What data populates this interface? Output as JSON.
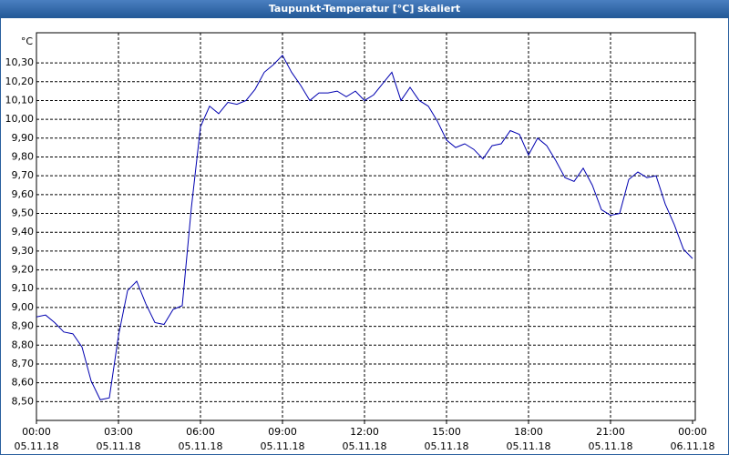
{
  "chart_data": {
    "type": "line",
    "title": "Taupunkt-Temperatur [°C] skaliert",
    "y_unit": "°C",
    "xlim": [
      0,
      1440
    ],
    "xticks": [
      {
        "value": 0,
        "label": "00:00"
      },
      {
        "value": 180,
        "label": "03:00"
      },
      {
        "value": 360,
        "label": "06:00"
      },
      {
        "value": 540,
        "label": "09:00"
      },
      {
        "value": 720,
        "label": "12:00"
      },
      {
        "value": 900,
        "label": "15:00"
      },
      {
        "value": 1080,
        "label": "18:00"
      },
      {
        "value": 1260,
        "label": "21:00"
      },
      {
        "value": 1440,
        "label": "00:00"
      }
    ],
    "xtick_dates": [
      "05.11.18",
      "05.11.18",
      "05.11.18",
      "05.11.18",
      "05.11.18",
      "05.11.18",
      "05.11.18",
      "05.11.18",
      "06.11.18"
    ],
    "ylim": [
      8.4,
      10.46
    ],
    "yticks": [
      {
        "value": 8.5,
        "label": "8,50"
      },
      {
        "value": 8.6,
        "label": "8,60"
      },
      {
        "value": 8.7,
        "label": "8,70"
      },
      {
        "value": 8.8,
        "label": "8,80"
      },
      {
        "value": 8.9,
        "label": "8,90"
      },
      {
        "value": 9.0,
        "label": "9,00"
      },
      {
        "value": 9.1,
        "label": "9,10"
      },
      {
        "value": 9.2,
        "label": "9,20"
      },
      {
        "value": 9.3,
        "label": "9,30"
      },
      {
        "value": 9.4,
        "label": "9,40"
      },
      {
        "value": 9.5,
        "label": "9,50"
      },
      {
        "value": 9.6,
        "label": "9,60"
      },
      {
        "value": 9.7,
        "label": "9,70"
      },
      {
        "value": 9.8,
        "label": "9,80"
      },
      {
        "value": 9.9,
        "label": "9,90"
      },
      {
        "value": 10.0,
        "label": "10,00"
      },
      {
        "value": 10.1,
        "label": "10,10"
      },
      {
        "value": 10.2,
        "label": "10,20"
      },
      {
        "value": 10.3,
        "label": "10,30"
      }
    ],
    "grid": true,
    "x": [
      0,
      20,
      40,
      60,
      80,
      100,
      120,
      140,
      160,
      180,
      200,
      220,
      240,
      260,
      280,
      300,
      320,
      340,
      360,
      380,
      400,
      420,
      440,
      460,
      480,
      500,
      520,
      540,
      560,
      580,
      600,
      620,
      640,
      660,
      680,
      700,
      720,
      740,
      760,
      780,
      800,
      820,
      840,
      860,
      880,
      900,
      920,
      940,
      960,
      980,
      1000,
      1020,
      1040,
      1060,
      1080,
      1100,
      1120,
      1140,
      1160,
      1180,
      1200,
      1220,
      1240,
      1260,
      1280,
      1300,
      1320,
      1340,
      1360,
      1380,
      1400,
      1420,
      1440
    ],
    "series": [
      {
        "color": "#0000b0",
        "values": [
          8.95,
          8.96,
          8.92,
          8.87,
          8.86,
          8.79,
          8.61,
          8.51,
          8.52,
          8.85,
          9.09,
          9.14,
          9.02,
          8.92,
          8.91,
          8.99,
          9.01,
          9.53,
          9.96,
          10.07,
          10.03,
          10.09,
          10.08,
          10.1,
          10.16,
          10.25,
          10.29,
          10.34,
          10.25,
          10.18,
          10.1,
          10.14,
          10.14,
          10.15,
          10.12,
          10.15,
          10.1,
          10.13,
          10.19,
          10.25,
          10.1,
          10.17,
          10.1,
          10.07,
          9.99,
          9.89,
          9.85,
          9.87,
          9.84,
          9.79,
          9.86,
          9.87,
          9.94,
          9.92,
          9.81,
          9.9,
          9.86,
          9.78,
          9.69,
          9.67,
          9.74,
          9.65,
          9.52,
          9.49,
          9.5,
          9.68,
          9.72,
          9.69,
          9.7,
          9.55,
          9.44,
          9.31,
          9.26
        ]
      }
    ]
  }
}
